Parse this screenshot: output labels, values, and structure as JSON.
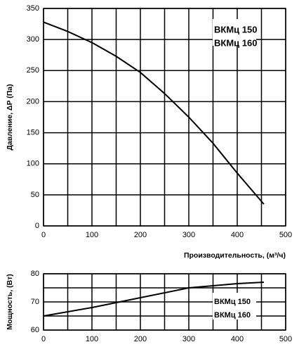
{
  "chart_data": [
    {
      "type": "line",
      "ylabel": "Давление, ΔP (Па)",
      "xlabel": "Производительность, (м³/ч)",
      "legend": [
        "ВКМц 150",
        "ВКМц 160"
      ],
      "x": [
        0,
        50,
        100,
        150,
        200,
        250,
        300,
        350,
        400,
        455
      ],
      "series": [
        {
          "color": "#000000",
          "values": [
            328,
            313,
            295,
            273,
            247,
            213,
            175,
            133,
            85,
            35
          ]
        }
      ],
      "xlim": [
        0,
        500
      ],
      "xticks": [
        0,
        100,
        200,
        300,
        400,
        500
      ],
      "xminor": [
        50,
        150,
        250,
        350,
        450
      ],
      "ylim": [
        0,
        350
      ],
      "yticks": [
        0,
        50,
        100,
        150,
        200,
        250,
        300,
        350
      ],
      "grid": true
    },
    {
      "type": "line",
      "ylabel": "Мощность, (Вт)",
      "legend": [
        "ВКМц 150",
        "ВКМц 160"
      ],
      "x": [
        0,
        100,
        200,
        300,
        400,
        455
      ],
      "series": [
        {
          "color": "#000000",
          "values": [
            65,
            68,
            71.5,
            75,
            76.5,
            77
          ]
        }
      ],
      "xlim": [
        0,
        500
      ],
      "xticks": [
        0,
        100,
        200,
        300,
        400,
        500
      ],
      "xminor": [
        50,
        150,
        250,
        350,
        450
      ],
      "ylim": [
        60,
        80
      ],
      "yticks": [
        60,
        70,
        80
      ],
      "yminor": [
        65,
        75
      ],
      "grid": true
    }
  ]
}
